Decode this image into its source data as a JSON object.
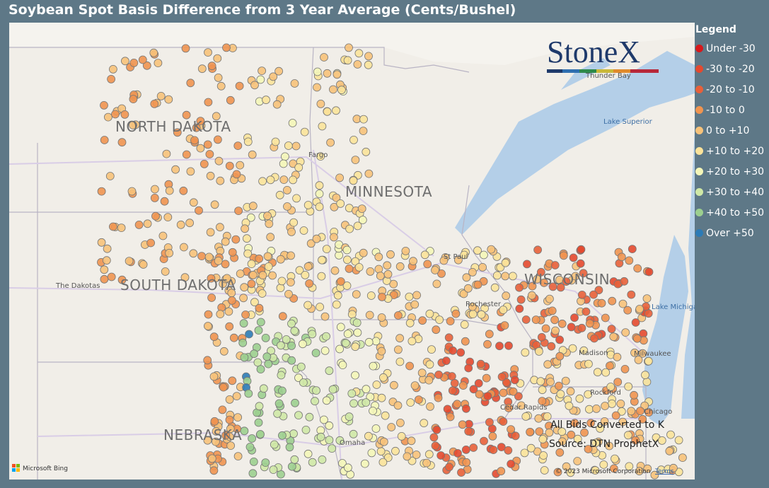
{
  "header": {
    "title": "Soybean Spot Basis Difference from 3 Year Average (Cents/Bushel)"
  },
  "legend": {
    "title": "Legend",
    "items": [
      {
        "label": "Under -30",
        "color": "#d7191c"
      },
      {
        "label": "-30 to -20",
        "color": "#e4492f"
      },
      {
        "label": "-20 to -10",
        "color": "#e8603a"
      },
      {
        "label": "-10 to 0",
        "color": "#f09450"
      },
      {
        "label": "0 to +10",
        "color": "#f7c27a"
      },
      {
        "label": "+10 to +20",
        "color": "#fbe39a"
      },
      {
        "label": "+20 to +30",
        "color": "#f4f6b8"
      },
      {
        "label": "+30 to +40",
        "color": "#cfe8a6"
      },
      {
        "label": "+40 to +50",
        "color": "#9ccf8f"
      },
      {
        "label": "Over +50",
        "color": "#2c7bb6"
      }
    ]
  },
  "map": {
    "logo": "StoneX",
    "states": [
      "NORTH DAKOTA",
      "MINNESOTA",
      "SOUTH DAKOTA",
      "WISCONSIN",
      "NEBRASKA"
    ],
    "places": [
      "The Dakotas",
      "Fargo",
      "St Paul",
      "Rochester",
      "Madison",
      "Milwaukee",
      "Rockford",
      "Chicago",
      "Cedar Rapids",
      "Omaha",
      "Thunder Bay"
    ],
    "lakes": [
      "Lake Superior",
      "Lake Michigan"
    ],
    "notes": [
      "All Bids Converted to K",
      "Source: DTN ProphetX"
    ],
    "attribution": {
      "brand": "Microsoft Bing",
      "copyright": "© 2023 Microsoft Corporation",
      "terms": "Terms"
    }
  }
}
